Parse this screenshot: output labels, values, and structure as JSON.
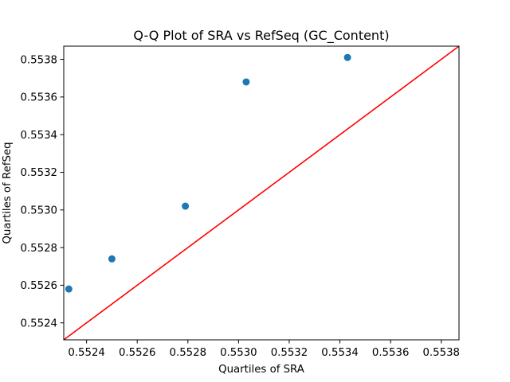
{
  "chart_data": {
    "type": "scatter",
    "title": "Q-Q Plot of SRA vs RefSeq (GC_Content)",
    "xlabel": "Quartiles of SRA",
    "ylabel": "Quartiles of RefSeq",
    "xlim": [
      0.55231,
      0.55387
    ],
    "ylim": [
      0.55231,
      0.55387
    ],
    "xticks": [
      0.5524,
      0.5526,
      0.5528,
      0.553,
      0.5532,
      0.5534,
      0.5536,
      0.5538
    ],
    "xtick_labels": [
      "0.5524",
      "0.5526",
      "0.5528",
      "0.5530",
      "0.5532",
      "0.5534",
      "0.5536",
      "0.5538"
    ],
    "yticks": [
      0.5524,
      0.5526,
      0.5528,
      0.553,
      0.5532,
      0.5534,
      0.5536,
      0.5538
    ],
    "ytick_labels": [
      "0.5524",
      "0.5526",
      "0.5528",
      "0.5530",
      "0.5532",
      "0.5534",
      "0.5536",
      "0.5538"
    ],
    "series": [
      {
        "x": [
          0.55233,
          0.5525,
          0.55279,
          0.55303,
          0.55343
        ],
        "y": [
          0.55258,
          0.55274,
          0.55302,
          0.55368,
          0.55381
        ],
        "color": "#1f77b4"
      }
    ],
    "reference_line": {
      "type": "y=x",
      "color": "#ff0000"
    },
    "grid": false,
    "legend": "none"
  }
}
